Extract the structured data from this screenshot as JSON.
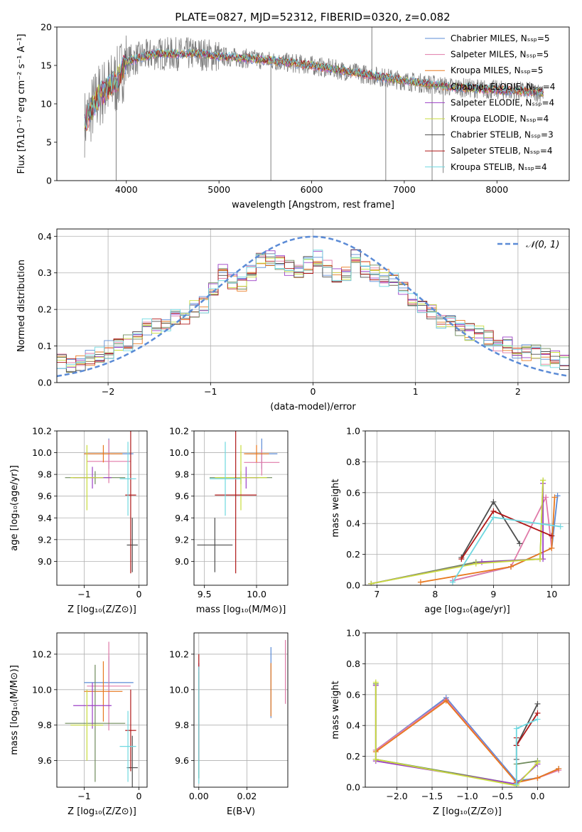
{
  "figure": {
    "title": "PLATE=0827, MJD=52312, FIBERID=0320, z=0.082"
  },
  "labels": {
    "spectrum_x": "wavelength [Angstrom, rest frame]",
    "spectrum_y": "Flux [fλ10⁻¹⁷ erg cm⁻² s⁻¹ A⁻¹]",
    "resid_x": "(data-model)/error",
    "resid_y": "Normed distribution",
    "resid_legend": "𝒩(0, 1)",
    "age": "age  [log₁₀(age/yr)]",
    "Z": "Z [log₁₀(Z/Z⊙)]",
    "mass": "mass [log₁₀(M/M⊙)]",
    "ebv": "E(B-V)",
    "mass_weight": "mass weight"
  },
  "models": [
    {
      "name": "Chabrier MILES, Nₛₛₚ=5",
      "color": "#5b8bd6"
    },
    {
      "name": "Salpeter MILES, Nₛₛₚ=5",
      "color": "#e07aa8"
    },
    {
      "name": "Kroupa MILES, Nₛₛₚ=5",
      "color": "#e8781e"
    },
    {
      "name": "Chabrier ELODIE, Nₛₛₚ=4",
      "color": "#6e8a5a"
    },
    {
      "name": "Salpeter ELODIE, Nₛₛₚ=4",
      "color": "#9b3fc6"
    },
    {
      "name": "Kroupa ELODIE, Nₛₛₚ=4",
      "color": "#c8dc3c"
    },
    {
      "name": "Chabrier STELIB, Nₛₛₚ=3",
      "color": "#4d4d4d"
    },
    {
      "name": "Salpeter STELIB, Nₛₛₚ=4",
      "color": "#b01818"
    },
    {
      "name": "Kroupa STELIB, Nₛₛₚ=4",
      "color": "#6fd8e0"
    }
  ],
  "chart_data": [
    {
      "id": "spectrum",
      "type": "line",
      "xlim": [
        3250,
        8780
      ],
      "ylim": [
        0,
        20
      ],
      "xticks": [
        4000,
        5000,
        6000,
        7000,
        8000
      ],
      "yticks": [
        0,
        5,
        10,
        15,
        20
      ],
      "data_color": "#808080",
      "x_range": [
        3550,
        8500
      ],
      "continuum": [
        [
          3550,
          7.5
        ],
        [
          3700,
          11
        ],
        [
          3900,
          13
        ],
        [
          4000,
          15.5
        ],
        [
          4300,
          16.5
        ],
        [
          4800,
          16.5
        ],
        [
          5000,
          16.2
        ],
        [
          5500,
          15.7
        ],
        [
          6000,
          15
        ],
        [
          6500,
          14
        ],
        [
          7000,
          13
        ],
        [
          7500,
          12.2
        ],
        [
          8000,
          11.8
        ],
        [
          8500,
          11.5
        ]
      ],
      "spikes": [
        [
          3890,
          0
        ],
        [
          5560,
          0
        ],
        [
          6650,
          20
        ],
        [
          6800,
          0
        ],
        [
          7300,
          0
        ],
        [
          7420,
          1
        ]
      ],
      "legend": "upper-right"
    },
    {
      "id": "residuals",
      "type": "line",
      "xlim": [
        -2.5,
        2.5
      ],
      "ylim": [
        0,
        0.42
      ],
      "xticks": [
        -2,
        -1,
        0,
        1,
        2
      ],
      "yticks": [
        0.0,
        0.1,
        0.2,
        0.3,
        0.4
      ],
      "gaussian": {
        "mu": 0,
        "sigma": 1,
        "color": "#5b8bd6"
      },
      "legend": "upper-right",
      "series_shape": [
        0.06,
        0.05,
        0.055,
        0.065,
        0.08,
        0.09,
        0.095,
        0.11,
        0.125,
        0.15,
        0.16,
        0.165,
        0.175,
        0.18,
        0.2,
        0.215,
        0.26,
        0.3,
        0.28,
        0.27,
        0.3,
        0.33,
        0.34,
        0.33,
        0.315,
        0.3,
        0.32,
        0.34,
        0.31,
        0.29,
        0.3,
        0.34,
        0.31,
        0.3,
        0.285,
        0.28,
        0.26,
        0.22,
        0.2,
        0.19,
        0.17,
        0.16,
        0.15,
        0.14,
        0.13,
        0.12,
        0.11,
        0.1,
        0.09,
        0.085,
        0.08,
        0.07,
        0.065,
        0.06
      ]
    },
    {
      "id": "age_vs_Z",
      "type": "scatter",
      "xlim": [
        -1.5,
        0.15
      ],
      "ylim": [
        8.78,
        10.2
      ],
      "xticks": [
        -1,
        0
      ],
      "yticks": [
        9.0,
        9.2,
        9.4,
        9.6,
        9.8,
        10.0,
        10.2
      ],
      "points": [
        {
          "x": -0.55,
          "y": 9.99,
          "xerr": 0.45,
          "yerr": 0.14
        },
        {
          "x": -0.55,
          "y": 9.92,
          "xerr": 0.4,
          "yerr": 0.2
        },
        {
          "x": -0.65,
          "y": 9.99,
          "xerr": 0.35,
          "yerr": 0.08
        },
        {
          "x": -0.8,
          "y": 9.77,
          "xerr": 0.55,
          "yerr": 0.06
        },
        {
          "x": -0.85,
          "y": 9.77,
          "xerr": 0.35,
          "yerr": 0.1
        },
        {
          "x": -0.95,
          "y": 9.77,
          "xerr": 0.3,
          "yerr": 0.3
        },
        {
          "x": -0.12,
          "y": 9.15,
          "xerr": 0.1,
          "yerr": 0.25
        },
        {
          "x": -0.15,
          "y": 9.61,
          "xerr": 0.1,
          "yerr": 0.72
        },
        {
          "x": -0.2,
          "y": 9.76,
          "xerr": 0.15,
          "yerr": 0.34
        }
      ]
    },
    {
      "id": "age_vs_mass",
      "type": "scatter",
      "xlim": [
        9.4,
        10.3
      ],
      "ylim": [
        8.78,
        10.2
      ],
      "xticks": [
        9.5,
        10.0
      ],
      "yticks": [
        9.0,
        9.2,
        9.4,
        9.6,
        9.8,
        10.0,
        10.2
      ],
      "points": [
        {
          "x": 10.05,
          "y": 9.99,
          "xerr": 0.15,
          "yerr": 0.14
        },
        {
          "x": 10.05,
          "y": 9.91,
          "xerr": 0.17,
          "yerr": 0.12
        },
        {
          "x": 10.0,
          "y": 9.99,
          "xerr": 0.12,
          "yerr": 0.08
        },
        {
          "x": 9.85,
          "y": 9.77,
          "xerr": 0.3,
          "yerr": 0.06
        },
        {
          "x": 9.9,
          "y": 9.77,
          "xerr": 0.12,
          "yerr": 0.1
        },
        {
          "x": 9.85,
          "y": 9.77,
          "xerr": 0.25,
          "yerr": 0.3
        },
        {
          "x": 9.6,
          "y": 9.15,
          "xerr": 0.17,
          "yerr": 0.25
        },
        {
          "x": 9.8,
          "y": 9.61,
          "xerr": 0.2,
          "yerr": 0.72
        },
        {
          "x": 9.7,
          "y": 9.76,
          "xerr": 0.15,
          "yerr": 0.34
        }
      ]
    },
    {
      "id": "massweight_vs_age",
      "type": "line",
      "xlim": [
        6.8,
        10.3
      ],
      "ylim": [
        0,
        1.0
      ],
      "xticks": [
        7,
        8,
        9,
        10
      ],
      "yticks": [
        0.0,
        0.2,
        0.4,
        0.6,
        0.8,
        1.0
      ],
      "series": [
        {
          "x": [
            8.3,
            9.3,
            10.0,
            10.1
          ],
          "y": [
            0.03,
            0.12,
            0.24,
            0.58
          ]
        },
        {
          "x": [
            8.3,
            9.3,
            9.9,
            10.0
          ],
          "y": [
            0.03,
            0.12,
            0.57,
            0.24
          ]
        },
        {
          "x": [
            7.75,
            9.3,
            10.0,
            10.05
          ],
          "y": [
            0.02,
            0.12,
            0.24,
            0.57
          ]
        },
        {
          "x": [
            6.9,
            8.7,
            9.8,
            9.85
          ],
          "y": [
            0.01,
            0.15,
            0.17,
            0.68
          ]
        },
        {
          "x": [
            6.9,
            8.8,
            9.85,
            9.85
          ],
          "y": [
            0.01,
            0.15,
            0.17,
            0.66
          ]
        },
        {
          "x": [
            6.9,
            8.7,
            9.8,
            9.85
          ],
          "y": [
            0.01,
            0.14,
            0.17,
            0.68
          ]
        },
        {
          "x": [
            8.45,
            9.0,
            9.45
          ],
          "y": [
            0.18,
            0.54,
            0.27
          ]
        },
        {
          "x": [
            8.45,
            9.0,
            10.0
          ],
          "y": [
            0.17,
            0.48,
            0.32
          ]
        },
        {
          "x": [
            8.3,
            9.0,
            10.15
          ],
          "y": [
            0.02,
            0.44,
            0.38
          ]
        }
      ]
    },
    {
      "id": "mass_vs_Z",
      "type": "scatter",
      "xlim": [
        -1.5,
        0.15
      ],
      "ylim": [
        9.45,
        10.32
      ],
      "xticks": [
        -1,
        0
      ],
      "yticks": [
        9.6,
        9.8,
        10.0,
        10.2
      ],
      "points": [
        {
          "x": -0.55,
          "y": 10.04,
          "xerr": 0.45,
          "yerr": 0.15
        },
        {
          "x": -0.55,
          "y": 10.02,
          "xerr": 0.4,
          "yerr": 0.25
        },
        {
          "x": -0.65,
          "y": 9.99,
          "xerr": 0.35,
          "yerr": 0.17
        },
        {
          "x": -0.8,
          "y": 9.81,
          "xerr": 0.55,
          "yerr": 0.33
        },
        {
          "x": -0.85,
          "y": 9.91,
          "xerr": 0.35,
          "yerr": 0.13
        },
        {
          "x": -0.95,
          "y": 9.8,
          "xerr": 0.3,
          "yerr": 0.2
        },
        {
          "x": -0.12,
          "y": 9.56,
          "xerr": 0.1,
          "yerr": 0.18
        },
        {
          "x": -0.15,
          "y": 9.77,
          "xerr": 0.1,
          "yerr": 0.23
        },
        {
          "x": -0.2,
          "y": 9.68,
          "xerr": 0.15,
          "yerr": 0.2
        }
      ]
    },
    {
      "id": "mass_vs_ebv",
      "type": "scatter",
      "xlim": [
        -0.002,
        0.037
      ],
      "ylim": [
        9.45,
        10.32
      ],
      "xticks": [
        0.0,
        0.02
      ],
      "yticks": [
        9.6,
        9.8,
        10.0,
        10.2
      ],
      "points": [
        {
          "x": 0.03,
          "y": 10.04,
          "xerr": 0,
          "yerr": 0.2
        },
        {
          "x": 0.036,
          "y": 10.1,
          "xerr": 0,
          "yerr": 0.18
        },
        {
          "x": 0.03,
          "y": 10.0,
          "xerr": 0,
          "yerr": 0.15
        },
        {
          "x": 0.0,
          "y": 9.8,
          "xerr": 0,
          "yerr": 0.3
        },
        {
          "x": 0.0,
          "y": 9.85,
          "xerr": 0,
          "yerr": 0.3
        },
        {
          "x": 0.0,
          "y": 9.8,
          "xerr": 0,
          "yerr": 0.3
        },
        {
          "x": 0.0,
          "y": 9.8,
          "xerr": 0,
          "yerr": 0.3
        },
        {
          "x": 0.0,
          "y": 9.9,
          "xerr": 0,
          "yerr": 0.3
        },
        {
          "x": 0.0,
          "y": 9.8,
          "xerr": 0,
          "yerr": 0.33
        }
      ]
    },
    {
      "id": "massweight_vs_Z",
      "type": "line",
      "xlim": [
        -2.45,
        0.45
      ],
      "ylim": [
        0,
        1.0
      ],
      "xticks": [
        -2.0,
        -1.5,
        -1.0,
        -0.5,
        0.0
      ],
      "yticks": [
        0.0,
        0.2,
        0.4,
        0.6,
        0.8,
        1.0
      ],
      "series": [
        {
          "x": [
            -2.3,
            -1.3,
            -0.3,
            0.0,
            0.3
          ],
          "y": [
            0.24,
            0.58,
            0.04,
            0.06,
            0.12
          ]
        },
        {
          "x": [
            -2.3,
            -1.3,
            -0.3,
            0.0,
            0.3
          ],
          "y": [
            0.24,
            0.57,
            0.03,
            0.06,
            0.11
          ]
        },
        {
          "x": [
            -2.3,
            -1.3,
            -0.3,
            0.0,
            0.3
          ],
          "y": [
            0.23,
            0.56,
            0.03,
            0.06,
            0.12
          ]
        },
        {
          "x": [
            -2.3,
            -2.3,
            -0.3,
            -0.3,
            0.0
          ],
          "y": [
            0.67,
            0.18,
            0.02,
            0.15,
            0.17
          ]
        },
        {
          "x": [
            -2.3,
            -2.3,
            -0.3,
            0.0
          ],
          "y": [
            0.66,
            0.17,
            0.02,
            0.15
          ]
        },
        {
          "x": [
            -2.3,
            -2.3,
            -0.3,
            0.0
          ],
          "y": [
            0.68,
            0.18,
            0.01,
            0.16
          ]
        },
        {
          "x": [
            -0.3,
            -0.3,
            0.0
          ],
          "y": [
            0.18,
            0.27,
            0.54
          ]
        },
        {
          "x": [
            -0.3,
            -0.3,
            0.0
          ],
          "y": [
            0.32,
            0.27,
            0.48
          ]
        },
        {
          "x": [
            -0.3,
            -0.3,
            0.0
          ],
          "y": [
            0.02,
            0.38,
            0.44
          ]
        }
      ]
    }
  ]
}
